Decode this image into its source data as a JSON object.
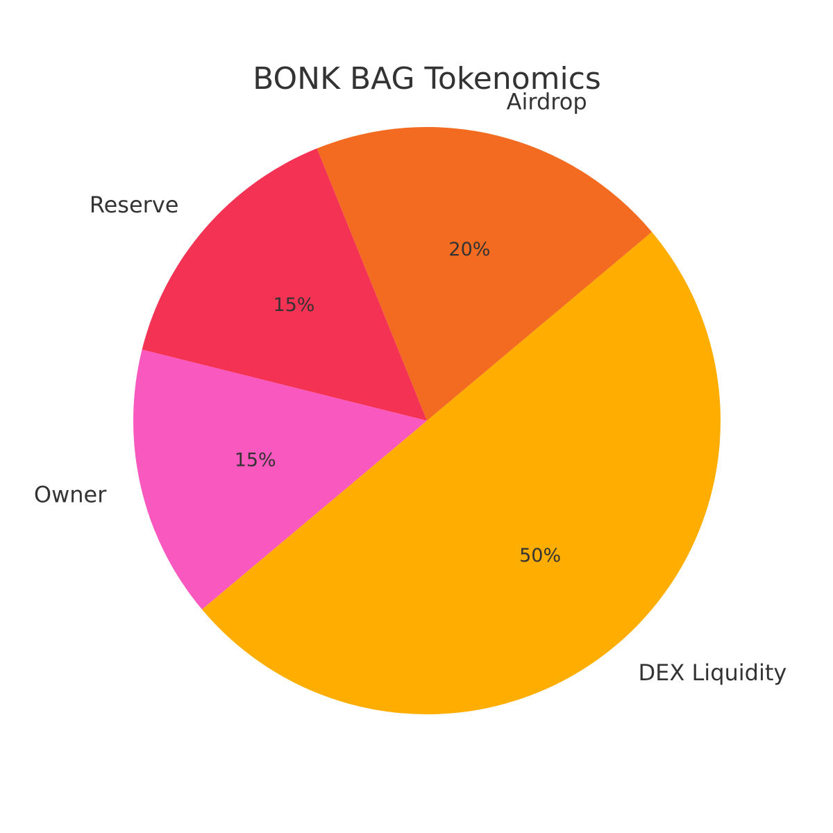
{
  "chart_data": {
    "type": "pie",
    "title": "BONK BAG Tokenomics",
    "categories": [
      "DEX Liquidity",
      "Airdrop",
      "Reserve",
      "Owner"
    ],
    "values": [
      50,
      20,
      15,
      15
    ],
    "value_labels": [
      "50%",
      "20%",
      "15%",
      "15%"
    ],
    "colors": [
      "#FFAE00",
      "#F26B21",
      "#F43254",
      "#F959BF"
    ],
    "legend": "none"
  }
}
